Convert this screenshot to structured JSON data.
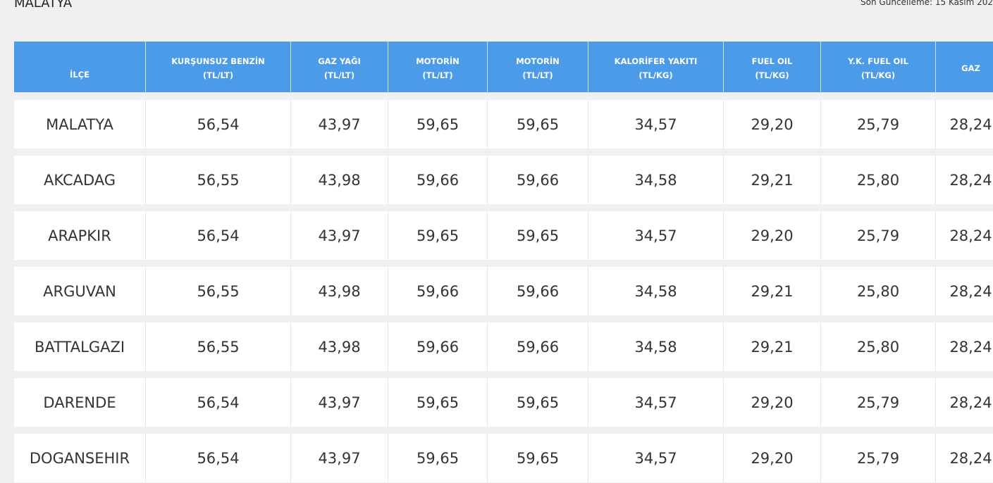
{
  "header": {
    "title": "MALATYA",
    "updated": "Son Güncelleme: 15 Kasım 202"
  },
  "table": {
    "columns": [
      {
        "name": "İLÇE"
      },
      {
        "name": "KURŞUNSUZ BENZİN",
        "unit": "(TL/LT)"
      },
      {
        "name": "GAZ YAĞI",
        "unit": "(TL/LT)"
      },
      {
        "name": "MOTORİN",
        "unit": "(TL/LT)"
      },
      {
        "name": "MOTORİN",
        "unit": "(TL/LT)"
      },
      {
        "name": "KALORİFER YAKITI",
        "unit": "(TL/KG)"
      },
      {
        "name": "FUEL OIL",
        "unit": "(TL/KG)"
      },
      {
        "name": "Y.K. FUEL OIL",
        "unit": "(TL/KG)"
      },
      {
        "name": "GAZ"
      }
    ],
    "rows": [
      [
        "MALATYA",
        "56,54",
        "43,97",
        "59,65",
        "59,65",
        "34,57",
        "29,20",
        "25,79",
        "28,24"
      ],
      [
        "AKCADAG",
        "56,55",
        "43,98",
        "59,66",
        "59,66",
        "34,58",
        "29,21",
        "25,80",
        "28,24"
      ],
      [
        "ARAPKIR",
        "56,54",
        "43,97",
        "59,65",
        "59,65",
        "34,57",
        "29,20",
        "25,79",
        "28,24"
      ],
      [
        "ARGUVAN",
        "56,55",
        "43,98",
        "59,66",
        "59,66",
        "34,58",
        "29,21",
        "25,80",
        "28,24"
      ],
      [
        "BATTALGAZI",
        "56,55",
        "43,98",
        "59,66",
        "59,66",
        "34,58",
        "29,21",
        "25,80",
        "28,24"
      ],
      [
        "DARENDE",
        "56,54",
        "43,97",
        "59,65",
        "59,65",
        "34,57",
        "29,20",
        "25,79",
        "28,24"
      ],
      [
        "DOGANSEHIR",
        "56,54",
        "43,97",
        "59,65",
        "59,65",
        "34,57",
        "29,20",
        "25,79",
        "28,24"
      ]
    ]
  }
}
